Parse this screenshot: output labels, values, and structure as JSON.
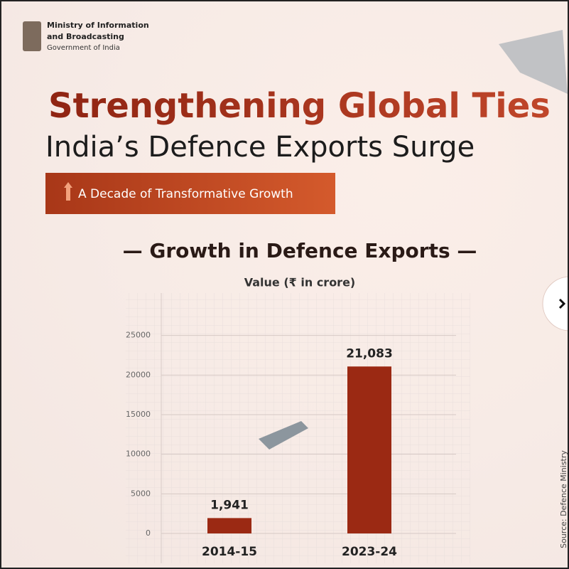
{
  "header": {
    "org_line1": "Ministry of Information",
    "org_line2": "and Broadcasting",
    "org_line3": "Government of India"
  },
  "headline": "Strengthening Global Ties",
  "subheadline": "India’s Defence Exports Surge",
  "badge": "A Decade of Transformative Growth",
  "source": "Source: Defence Ministry",
  "chart_data": {
    "type": "bar",
    "title": "— Growth in Defence Exports —",
    "y_label": "Value (₹ in crore)",
    "categories": [
      "2014-15",
      "2023-24"
    ],
    "values": [
      1941,
      21083
    ],
    "value_labels": [
      "1,941",
      "21,083"
    ],
    "color": "#9b2913",
    "ylim": [
      0,
      30000
    ],
    "yticks": [
      0,
      5000,
      10000,
      15000,
      20000,
      25000
    ],
    "grid": true
  }
}
